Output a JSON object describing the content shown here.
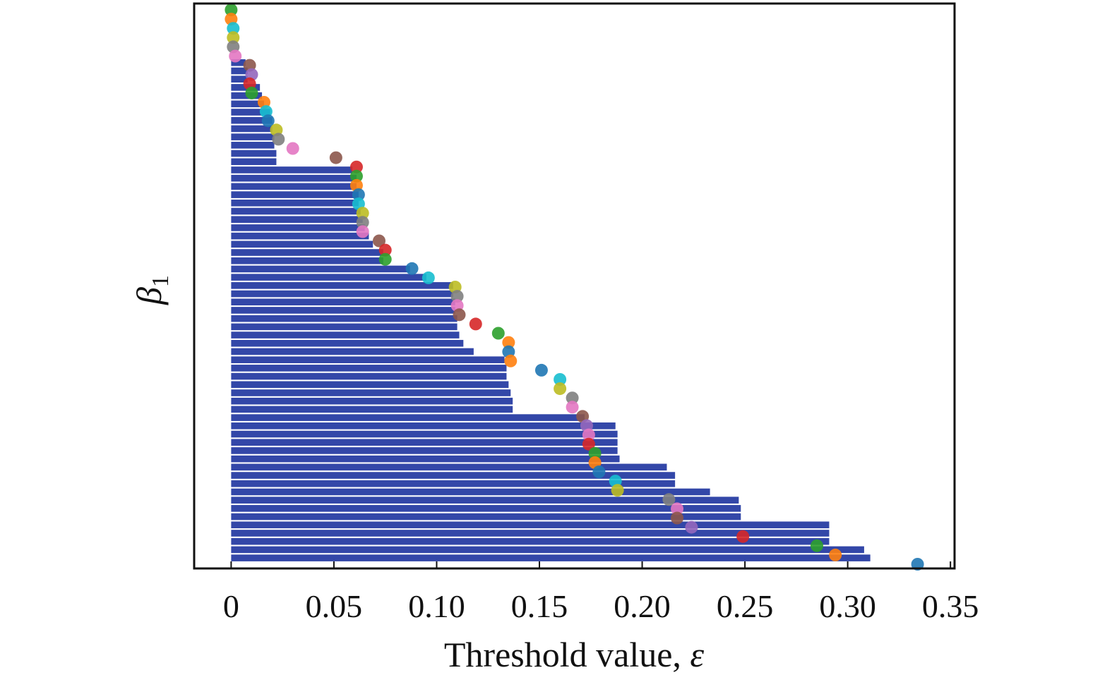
{
  "chart_data": {
    "type": "barcode",
    "xlabel": "Threshold value, ",
    "xlabel_symbol": "ε",
    "ylabel_symbol": "β",
    "ylabel_subscript": "1",
    "xlim": [
      -0.018,
      0.352
    ],
    "x_ticks": [
      0,
      0.05,
      0.1,
      0.15,
      0.2,
      0.25,
      0.3,
      0.35
    ],
    "x_tick_labels": [
      "0",
      "0.05",
      "0.10",
      "0.15",
      "0.20",
      "0.25",
      "0.30",
      "0.35"
    ],
    "bar_color": "#3347a8",
    "bars": [
      {
        "end": 0.007
      },
      {
        "end": 0.008
      },
      {
        "end": 0.008
      },
      {
        "end": 0.014
      },
      {
        "end": 0.015
      },
      {
        "end": 0.016
      },
      {
        "end": 0.019
      },
      {
        "end": 0.02
      },
      {
        "end": 0.02
      },
      {
        "end": 0.021
      },
      {
        "end": 0.021
      },
      {
        "end": 0.022
      },
      {
        "end": 0.022
      },
      {
        "end": 0.059
      },
      {
        "end": 0.061
      },
      {
        "end": 0.061
      },
      {
        "end": 0.062
      },
      {
        "end": 0.062
      },
      {
        "end": 0.063
      },
      {
        "end": 0.064
      },
      {
        "end": 0.065
      },
      {
        "end": 0.067
      },
      {
        "end": 0.069
      },
      {
        "end": 0.074
      },
      {
        "end": 0.074
      },
      {
        "end": 0.087
      },
      {
        "end": 0.095
      },
      {
        "end": 0.108
      },
      {
        "end": 0.108
      },
      {
        "end": 0.109
      },
      {
        "end": 0.109
      },
      {
        "end": 0.11
      },
      {
        "end": 0.11
      },
      {
        "end": 0.111
      },
      {
        "end": 0.113
      },
      {
        "end": 0.118
      },
      {
        "end": 0.133
      },
      {
        "end": 0.134
      },
      {
        "end": 0.134
      },
      {
        "end": 0.135
      },
      {
        "end": 0.136
      },
      {
        "end": 0.137
      },
      {
        "end": 0.137
      },
      {
        "end": 0.172
      },
      {
        "end": 0.187
      },
      {
        "end": 0.188
      },
      {
        "end": 0.188
      },
      {
        "end": 0.188
      },
      {
        "end": 0.189
      },
      {
        "end": 0.212
      },
      {
        "end": 0.216
      },
      {
        "end": 0.216
      },
      {
        "end": 0.233
      },
      {
        "end": 0.247
      },
      {
        "end": 0.248
      },
      {
        "end": 0.248
      },
      {
        "end": 0.291
      },
      {
        "end": 0.291
      },
      {
        "end": 0.291
      },
      {
        "end": 0.308
      },
      {
        "end": 0.311
      }
    ],
    "points": [
      {
        "x": 0.0,
        "color": "#2ca02c"
      },
      {
        "x": 0.0,
        "color": "#ff7f0e"
      },
      {
        "x": 0.001,
        "color": "#17becf"
      },
      {
        "x": 0.001,
        "color": "#bcbd22"
      },
      {
        "x": 0.001,
        "color": "#7f7f7f"
      },
      {
        "x": 0.002,
        "color": "#e377c2"
      },
      {
        "x": 0.009,
        "color": "#8c564b"
      },
      {
        "x": 0.01,
        "color": "#9467bd"
      },
      {
        "x": 0.009,
        "color": "#d62728"
      },
      {
        "x": 0.01,
        "color": "#2ca02c"
      },
      {
        "x": 0.016,
        "color": "#ff7f0e"
      },
      {
        "x": 0.017,
        "color": "#17becf"
      },
      {
        "x": 0.018,
        "color": "#1f77b4"
      },
      {
        "x": 0.022,
        "color": "#bcbd22"
      },
      {
        "x": 0.023,
        "color": "#7f7f7f"
      },
      {
        "x": 0.03,
        "color": "#e377c2"
      },
      {
        "x": 0.051,
        "color": "#8c564b"
      },
      {
        "x": 0.061,
        "color": "#d62728"
      },
      {
        "x": 0.061,
        "color": "#2ca02c"
      },
      {
        "x": 0.061,
        "color": "#ff7f0e"
      },
      {
        "x": 0.062,
        "color": "#1f77b4"
      },
      {
        "x": 0.062,
        "color": "#17becf"
      },
      {
        "x": 0.064,
        "color": "#bcbd22"
      },
      {
        "x": 0.064,
        "color": "#7f7f7f"
      },
      {
        "x": 0.064,
        "color": "#e377c2"
      },
      {
        "x": 0.072,
        "color": "#8c564b"
      },
      {
        "x": 0.075,
        "color": "#d62728"
      },
      {
        "x": 0.075,
        "color": "#2ca02c"
      },
      {
        "x": 0.088,
        "color": "#1f77b4"
      },
      {
        "x": 0.096,
        "color": "#17becf"
      },
      {
        "x": 0.109,
        "color": "#bcbd22"
      },
      {
        "x": 0.11,
        "color": "#7f7f7f"
      },
      {
        "x": 0.11,
        "color": "#e377c2"
      },
      {
        "x": 0.111,
        "color": "#8c564b"
      },
      {
        "x": 0.119,
        "color": "#d62728"
      },
      {
        "x": 0.13,
        "color": "#2ca02c"
      },
      {
        "x": 0.135,
        "color": "#ff7f0e"
      },
      {
        "x": 0.135,
        "color": "#1f77b4"
      },
      {
        "x": 0.136,
        "color": "#ff7f0e"
      },
      {
        "x": 0.151,
        "color": "#1f77b4"
      },
      {
        "x": 0.16,
        "color": "#17becf"
      },
      {
        "x": 0.16,
        "color": "#bcbd22"
      },
      {
        "x": 0.166,
        "color": "#7f7f7f"
      },
      {
        "x": 0.166,
        "color": "#e377c2"
      },
      {
        "x": 0.171,
        "color": "#8c564b"
      },
      {
        "x": 0.173,
        "color": "#9467bd"
      },
      {
        "x": 0.174,
        "color": "#e377c2"
      },
      {
        "x": 0.174,
        "color": "#d62728"
      },
      {
        "x": 0.177,
        "color": "#2ca02c"
      },
      {
        "x": 0.177,
        "color": "#ff7f0e"
      },
      {
        "x": 0.179,
        "color": "#1f77b4"
      },
      {
        "x": 0.187,
        "color": "#17becf"
      },
      {
        "x": 0.188,
        "color": "#bcbd22"
      },
      {
        "x": 0.213,
        "color": "#7f7f7f"
      },
      {
        "x": 0.217,
        "color": "#e377c2"
      },
      {
        "x": 0.217,
        "color": "#8c564b"
      },
      {
        "x": 0.224,
        "color": "#9467bd"
      },
      {
        "x": 0.249,
        "color": "#d62728"
      },
      {
        "x": 0.285,
        "color": "#2ca02c"
      },
      {
        "x": 0.294,
        "color": "#ff7f0e"
      },
      {
        "x": 0.334,
        "color": "#1f77b4"
      }
    ]
  }
}
